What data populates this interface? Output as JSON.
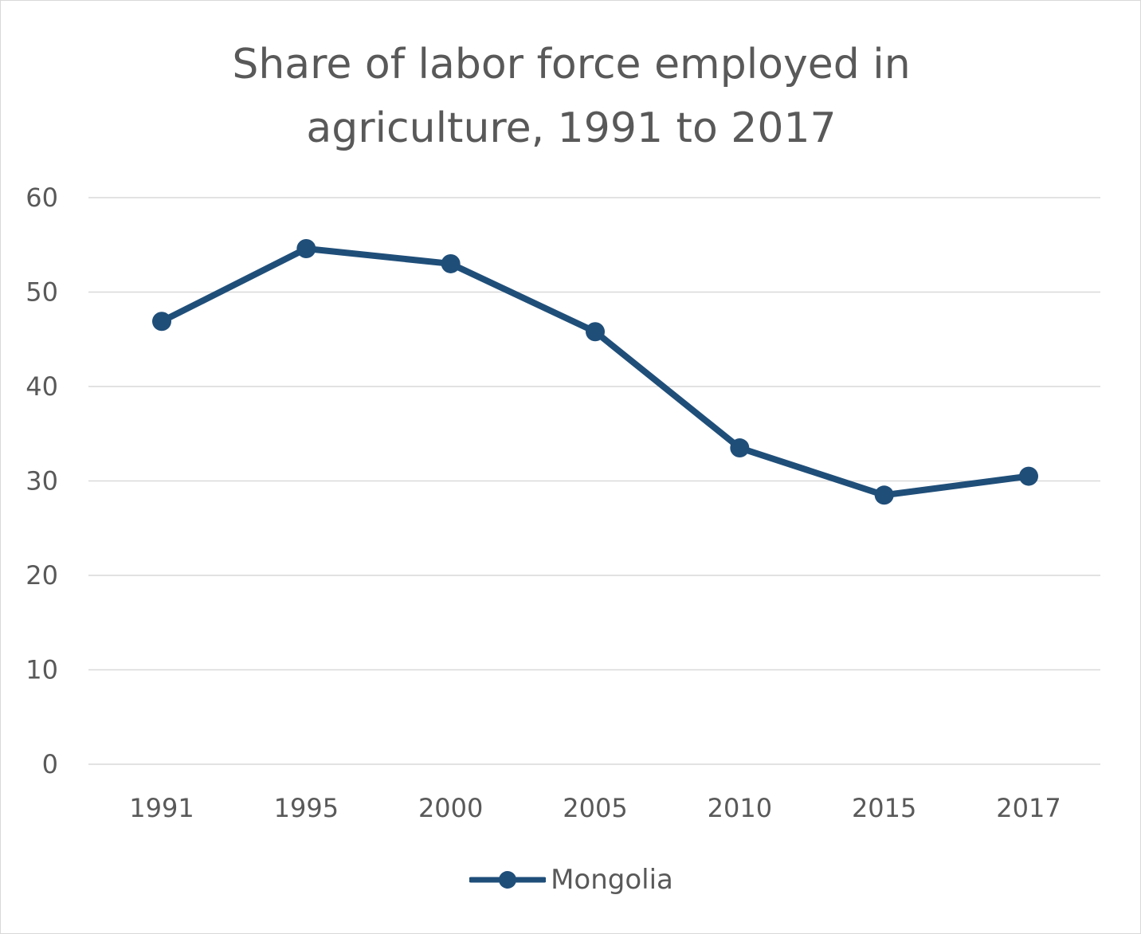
{
  "chart_data": {
    "type": "line",
    "title": "Share of labor force employed in agriculture, 1991 to 2017",
    "title_lines": [
      "Share of labor force employed in",
      "agriculture, 1991 to 2017"
    ],
    "categories": [
      "1991",
      "1995",
      "2000",
      "2005",
      "2010",
      "2015",
      "2017"
    ],
    "series": [
      {
        "name": "Mongolia",
        "values": [
          46.9,
          54.6,
          53.0,
          45.8,
          33.5,
          28.5,
          30.5
        ],
        "color": "#1f4e79"
      }
    ],
    "xlabel": "",
    "ylabel": "",
    "ylim": [
      0,
      60
    ],
    "yticks": [
      0,
      10,
      20,
      30,
      40,
      50,
      60
    ],
    "grid": true,
    "legend_position": "bottom",
    "colors": {
      "line": "#1f4e79",
      "grid": "#d9d9d9",
      "text": "#595959"
    }
  }
}
